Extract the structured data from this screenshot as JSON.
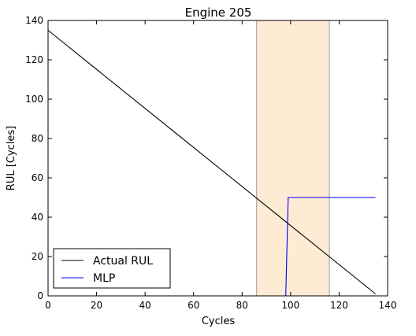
{
  "chart_data": {
    "type": "line",
    "title": "Engine 205",
    "xlabel": "Cycles",
    "ylabel": "RUL [Cycles]",
    "xlim": [
      0,
      140
    ],
    "ylim": [
      0,
      140
    ],
    "xticks": [
      0,
      20,
      40,
      60,
      80,
      100,
      120,
      140
    ],
    "yticks": [
      0,
      20,
      40,
      60,
      80,
      100,
      120,
      140
    ],
    "grid": false,
    "legend_position": "lower-left",
    "highlight_band": {
      "x_range": [
        86,
        116
      ],
      "fill_color": "#fdebd3",
      "edge_color": "#9a9a9a"
    },
    "series": [
      {
        "name": "Actual RUL",
        "color": "#000000",
        "x": [
          0,
          135
        ],
        "y": [
          135,
          1
        ]
      },
      {
        "name": "MLP",
        "color": "#0000ff",
        "x": [
          0,
          98,
          99,
          135
        ],
        "y": [
          0,
          0,
          50,
          50
        ]
      }
    ]
  }
}
